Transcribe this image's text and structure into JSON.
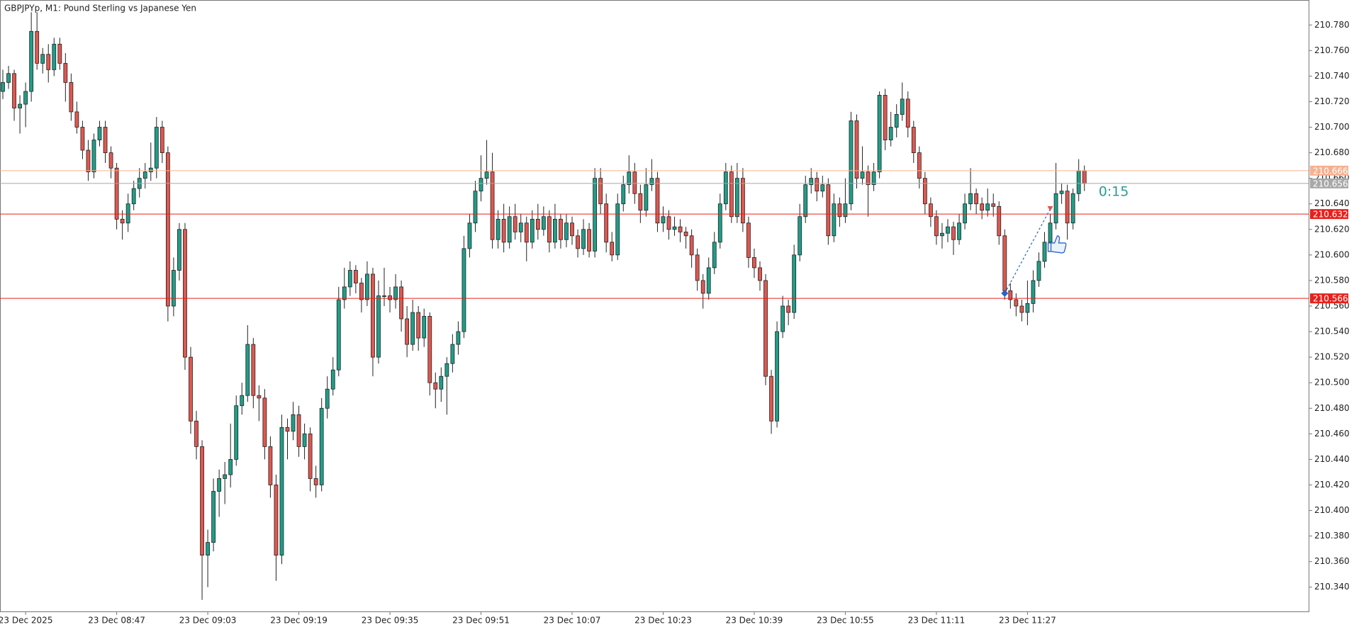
{
  "chart_data": {
    "type": "candlestick",
    "title": "GBPJPYp, M1:  Pound Sterling vs Japanese Yen",
    "timer": "0:15",
    "up_color": "#1f9e89",
    "down_color": "#e0574f",
    "ylim": [
      210.321,
      210.799
    ],
    "yticks": [
      {
        "value": 210.34,
        "label": "210.340"
      },
      {
        "value": 210.36,
        "label": "210.360"
      },
      {
        "value": 210.38,
        "label": "210.380"
      },
      {
        "value": 210.4,
        "label": "210.400"
      },
      {
        "value": 210.42,
        "label": "210.420"
      },
      {
        "value": 210.44,
        "label": "210.440"
      },
      {
        "value": 210.46,
        "label": "210.460"
      },
      {
        "value": 210.48,
        "label": "210.480"
      },
      {
        "value": 210.5,
        "label": "210.500"
      },
      {
        "value": 210.52,
        "label": "210.520"
      },
      {
        "value": 210.54,
        "label": "210.540"
      },
      {
        "value": 210.56,
        "label": "210.560"
      },
      {
        "value": 210.58,
        "label": "210.580"
      },
      {
        "value": 210.6,
        "label": "210.600"
      },
      {
        "value": 210.62,
        "label": "210.620"
      },
      {
        "value": 210.64,
        "label": "210.640"
      },
      {
        "value": 210.66,
        "label": "210.660"
      },
      {
        "value": 210.68,
        "label": "210.680"
      },
      {
        "value": 210.7,
        "label": "210.700"
      },
      {
        "value": 210.72,
        "label": "210.720"
      },
      {
        "value": 210.74,
        "label": "210.740"
      },
      {
        "value": 210.76,
        "label": "210.760"
      },
      {
        "value": 210.78,
        "label": "210.780"
      }
    ],
    "xticks": [
      {
        "value": 4,
        "label": "23 Dec 2025"
      },
      {
        "value": 20,
        "label": "23 Dec 08:47"
      },
      {
        "value": 36,
        "label": "23 Dec 09:03"
      },
      {
        "value": 52,
        "label": "23 Dec 09:19"
      },
      {
        "value": 68,
        "label": "23 Dec 09:35"
      },
      {
        "value": 84,
        "label": "23 Dec 09:51"
      },
      {
        "value": 100,
        "label": "23 Dec 10:07"
      },
      {
        "value": 116,
        "label": "23 Dec 10:23"
      },
      {
        "value": 132,
        "label": "23 Dec 10:39"
      },
      {
        "value": 148,
        "label": "23 Dec 10:55"
      },
      {
        "value": 164,
        "label": "23 Dec 11:11"
      },
      {
        "value": 180,
        "label": "23 Dec 11:27"
      }
    ],
    "levels": [
      {
        "value": 210.666,
        "color": "#f7b08f"
      },
      {
        "value": 210.656,
        "color": "#a8a8a8"
      },
      {
        "value": 210.632,
        "color": "#e8201c"
      },
      {
        "value": 210.566,
        "color": "#e8201c"
      }
    ],
    "trade": {
      "open_index": 176,
      "open_price": 210.57,
      "close_index": 184,
      "close_price": 210.636
    },
    "candles": [
      [
        210.728,
        210.745,
        210.722,
        210.735
      ],
      [
        210.735,
        210.748,
        210.73,
        210.742
      ],
      [
        210.742,
        210.745,
        210.705,
        210.715
      ],
      [
        210.715,
        210.725,
        210.695,
        210.718
      ],
      [
        210.718,
        210.735,
        210.7,
        210.728
      ],
      [
        210.728,
        210.79,
        210.72,
        210.775
      ],
      [
        210.775,
        210.79,
        210.745,
        210.75
      ],
      [
        210.75,
        210.762,
        210.742,
        210.757
      ],
      [
        210.757,
        210.765,
        210.735,
        210.745
      ],
      [
        210.745,
        210.77,
        210.74,
        210.765
      ],
      [
        210.765,
        210.77,
        210.745,
        210.75
      ],
      [
        210.75,
        210.758,
        210.72,
        210.735
      ],
      [
        210.735,
        210.742,
        210.705,
        210.712
      ],
      [
        210.712,
        210.72,
        210.695,
        210.7
      ],
      [
        210.7,
        210.705,
        210.675,
        210.682
      ],
      [
        210.682,
        210.69,
        210.658,
        210.665
      ],
      [
        210.665,
        210.695,
        210.66,
        210.69
      ],
      [
        210.69,
        210.705,
        210.685,
        210.7
      ],
      [
        210.7,
        210.705,
        210.672,
        210.68
      ],
      [
        210.68,
        210.685,
        210.66,
        210.668
      ],
      [
        210.668,
        210.672,
        210.62,
        210.628
      ],
      [
        210.628,
        210.635,
        210.612,
        210.625
      ],
      [
        210.625,
        210.648,
        210.618,
        210.64
      ],
      [
        210.64,
        210.658,
        210.635,
        210.652
      ],
      [
        210.652,
        210.668,
        210.645,
        210.66
      ],
      [
        210.66,
        210.672,
        210.652,
        210.665
      ],
      [
        210.665,
        210.688,
        210.658,
        210.668
      ],
      [
        210.668,
        210.708,
        210.66,
        210.7
      ],
      [
        210.7,
        210.705,
        210.672,
        210.68
      ],
      [
        210.68,
        210.685,
        210.548,
        210.56
      ],
      [
        210.56,
        210.598,
        210.552,
        210.588
      ],
      [
        210.588,
        210.625,
        210.58,
        210.62
      ],
      [
        210.62,
        210.625,
        210.51,
        210.52
      ],
      [
        210.52,
        210.528,
        210.46,
        210.47
      ],
      [
        210.47,
        210.478,
        210.44,
        210.45
      ],
      [
        210.45,
        210.455,
        210.33,
        210.365
      ],
      [
        210.365,
        210.385,
        210.34,
        210.375
      ],
      [
        210.375,
        210.425,
        210.368,
        210.415
      ],
      [
        210.415,
        210.432,
        210.395,
        210.425
      ],
      [
        210.425,
        210.438,
        210.405,
        210.428
      ],
      [
        210.428,
        210.468,
        210.418,
        210.44
      ],
      [
        210.44,
        210.49,
        210.435,
        210.482
      ],
      [
        210.482,
        210.5,
        210.475,
        210.49
      ],
      [
        210.49,
        210.545,
        210.485,
        210.53
      ],
      [
        210.53,
        210.535,
        210.48,
        210.49
      ],
      [
        210.49,
        210.498,
        210.47,
        210.488
      ],
      [
        210.488,
        210.495,
        210.44,
        210.45
      ],
      [
        210.45,
        210.458,
        210.41,
        210.42
      ],
      [
        210.42,
        210.428,
        210.345,
        210.365
      ],
      [
        210.365,
        210.475,
        210.358,
        210.465
      ],
      [
        210.465,
        210.472,
        210.44,
        210.462
      ],
      [
        210.462,
        210.485,
        210.455,
        210.475
      ],
      [
        210.475,
        210.482,
        210.442,
        210.45
      ],
      [
        210.45,
        210.468,
        210.44,
        210.46
      ],
      [
        210.46,
        210.465,
        210.415,
        210.425
      ],
      [
        210.425,
        210.435,
        210.41,
        210.42
      ],
      [
        210.42,
        210.488,
        210.415,
        210.48
      ],
      [
        210.48,
        210.505,
        210.472,
        210.495
      ],
      [
        210.495,
        210.52,
        210.49,
        210.51
      ],
      [
        210.51,
        210.575,
        210.505,
        210.565
      ],
      [
        210.565,
        210.59,
        210.558,
        210.575
      ],
      [
        210.575,
        210.595,
        210.568,
        210.588
      ],
      [
        210.588,
        210.592,
        210.57,
        210.578
      ],
      [
        210.578,
        210.582,
        210.555,
        210.565
      ],
      [
        210.565,
        210.595,
        210.56,
        210.585
      ],
      [
        210.585,
        210.59,
        210.505,
        210.52
      ],
      [
        210.52,
        210.58,
        210.515,
        210.568
      ],
      [
        210.568,
        210.59,
        210.56,
        210.568
      ],
      [
        210.568,
        210.575,
        210.555,
        210.565
      ],
      [
        210.565,
        210.585,
        210.558,
        210.575
      ],
      [
        210.575,
        210.58,
        210.54,
        210.55
      ],
      [
        210.55,
        210.56,
        210.52,
        210.53
      ],
      [
        210.53,
        210.565,
        210.525,
        210.555
      ],
      [
        210.555,
        210.56,
        210.525,
        210.535
      ],
      [
        210.535,
        210.558,
        210.528,
        210.552
      ],
      [
        210.552,
        210.555,
        210.49,
        210.5
      ],
      [
        210.5,
        210.508,
        210.48,
        210.495
      ],
      [
        210.495,
        210.512,
        210.485,
        210.505
      ],
      [
        210.505,
        210.52,
        210.475,
        210.515
      ],
      [
        210.515,
        210.538,
        210.508,
        210.53
      ],
      [
        210.53,
        210.548,
        210.522,
        210.54
      ],
      [
        210.54,
        210.615,
        210.535,
        210.605
      ],
      [
        210.605,
        210.632,
        210.598,
        210.625
      ],
      [
        210.625,
        210.658,
        210.618,
        210.65
      ],
      [
        210.65,
        210.678,
        210.642,
        210.66
      ],
      [
        210.66,
        210.69,
        210.655,
        210.665
      ],
      [
        210.665,
        210.68,
        210.605,
        210.612
      ],
      [
        210.612,
        210.635,
        210.605,
        210.628
      ],
      [
        210.628,
        210.64,
        210.602,
        210.61
      ],
      [
        210.61,
        210.638,
        210.605,
        210.63
      ],
      [
        210.63,
        210.64,
        210.612,
        210.618
      ],
      [
        210.618,
        210.632,
        210.61,
        210.625
      ],
      [
        210.625,
        210.63,
        210.595,
        210.61
      ],
      [
        210.61,
        210.635,
        210.605,
        210.628
      ],
      [
        210.628,
        210.64,
        210.612,
        210.62
      ],
      [
        210.62,
        210.638,
        210.615,
        210.63
      ],
      [
        210.63,
        210.635,
        210.602,
        210.61
      ],
      [
        210.61,
        210.64,
        210.605,
        210.628
      ],
      [
        210.628,
        210.632,
        210.605,
        210.612
      ],
      [
        210.612,
        210.632,
        210.606,
        210.625
      ],
      [
        210.625,
        210.63,
        210.608,
        210.615
      ],
      [
        210.615,
        210.62,
        210.598,
        210.605
      ],
      [
        210.605,
        210.628,
        210.6,
        210.62
      ],
      [
        210.62,
        210.625,
        210.598,
        210.603
      ],
      [
        210.603,
        210.668,
        210.598,
        210.66
      ],
      [
        210.66,
        210.668,
        210.632,
        210.64
      ],
      [
        210.64,
        210.648,
        210.602,
        210.61
      ],
      [
        210.61,
        210.618,
        210.595,
        210.6
      ],
      [
        210.6,
        210.648,
        210.596,
        210.64
      ],
      [
        210.64,
        210.662,
        210.634,
        210.655
      ],
      [
        210.655,
        210.678,
        210.648,
        210.665
      ],
      [
        210.665,
        210.672,
        210.64,
        210.648
      ],
      [
        210.648,
        210.655,
        210.625,
        210.635
      ],
      [
        210.635,
        210.668,
        210.63,
        210.655
      ],
      [
        210.655,
        210.675,
        210.65,
        210.66
      ],
      [
        210.66,
        210.665,
        210.618,
        210.625
      ],
      [
        210.625,
        210.638,
        210.618,
        210.63
      ],
      [
        210.63,
        210.635,
        210.612,
        210.62
      ],
      [
        210.62,
        210.63,
        210.615,
        210.622
      ],
      [
        210.622,
        210.628,
        210.61,
        210.618
      ],
      [
        210.618,
        210.622,
        210.605,
        210.615
      ],
      [
        210.615,
        210.62,
        210.59,
        210.6
      ],
      [
        210.6,
        210.605,
        210.572,
        210.58
      ],
      [
        210.58,
        210.585,
        210.558,
        210.57
      ],
      [
        210.57,
        210.598,
        210.565,
        210.59
      ],
      [
        210.59,
        210.618,
        210.585,
        210.61
      ],
      [
        210.61,
        210.648,
        210.605,
        210.64
      ],
      [
        210.64,
        210.672,
        210.635,
        210.665
      ],
      [
        210.665,
        210.67,
        210.625,
        210.63
      ],
      [
        210.63,
        210.672,
        210.625,
        210.66
      ],
      [
        210.66,
        210.668,
        210.618,
        210.625
      ],
      [
        210.625,
        210.63,
        210.59,
        210.598
      ],
      [
        210.598,
        210.605,
        210.582,
        210.59
      ],
      [
        210.59,
        210.595,
        210.572,
        210.58
      ],
      [
        210.58,
        210.585,
        210.498,
        210.505
      ],
      [
        210.505,
        210.51,
        210.46,
        210.47
      ],
      [
        210.47,
        210.548,
        210.465,
        210.54
      ],
      [
        210.54,
        210.568,
        210.535,
        210.56
      ],
      [
        210.56,
        210.565,
        210.545,
        210.555
      ],
      [
        210.555,
        210.608,
        210.55,
        210.6
      ],
      [
        210.6,
        210.64,
        210.595,
        210.63
      ],
      [
        210.63,
        210.662,
        210.625,
        210.655
      ],
      [
        210.655,
        210.668,
        210.648,
        210.66
      ],
      [
        210.66,
        210.665,
        210.642,
        210.65
      ],
      [
        210.65,
        210.662,
        210.645,
        210.655
      ],
      [
        210.655,
        210.66,
        210.608,
        210.615
      ],
      [
        210.615,
        210.648,
        210.61,
        210.64
      ],
      [
        210.64,
        210.645,
        210.622,
        210.63
      ],
      [
        210.63,
        210.66,
        210.625,
        210.64
      ],
      [
        210.64,
        210.712,
        210.635,
        210.705
      ],
      [
        210.705,
        210.71,
        210.652,
        210.66
      ],
      [
        210.66,
        210.685,
        210.655,
        210.665
      ],
      [
        210.665,
        210.67,
        210.63,
        210.655
      ],
      [
        210.655,
        210.672,
        210.65,
        210.665
      ],
      [
        210.665,
        210.728,
        210.66,
        210.725
      ],
      [
        210.725,
        210.73,
        210.682,
        210.69
      ],
      [
        210.69,
        210.712,
        210.685,
        210.7
      ],
      [
        210.7,
        210.718,
        210.692,
        210.71
      ],
      [
        210.71,
        210.735,
        210.705,
        210.722
      ],
      [
        210.722,
        210.728,
        210.692,
        210.7
      ],
      [
        210.7,
        210.705,
        210.672,
        210.68
      ],
      [
        210.68,
        210.685,
        210.652,
        210.66
      ],
      [
        210.66,
        210.665,
        210.632,
        210.64
      ],
      [
        210.64,
        210.645,
        210.622,
        210.63
      ],
      [
        210.63,
        210.635,
        210.608,
        210.615
      ],
      [
        210.615,
        210.625,
        210.605,
        210.617
      ],
      [
        210.617,
        210.628,
        210.61,
        210.622
      ],
      [
        210.622,
        210.626,
        210.6,
        210.612
      ],
      [
        210.612,
        210.632,
        210.608,
        210.625
      ],
      [
        210.625,
        210.648,
        210.62,
        210.64
      ],
      [
        210.64,
        210.668,
        210.635,
        210.648
      ],
      [
        210.648,
        210.652,
        210.632,
        210.64
      ],
      [
        210.64,
        210.645,
        210.628,
        210.635
      ],
      [
        210.635,
        210.652,
        210.63,
        210.64
      ],
      [
        210.64,
        210.648,
        210.63,
        210.638
      ],
      [
        210.638,
        210.642,
        210.608,
        210.615
      ],
      [
        210.615,
        210.62,
        210.565,
        210.572
      ],
      [
        210.572,
        210.578,
        210.558,
        210.565
      ],
      [
        210.565,
        210.57,
        210.552,
        210.56
      ],
      [
        210.56,
        210.565,
        210.548,
        210.555
      ],
      [
        210.555,
        210.58,
        210.545,
        210.562
      ],
      [
        210.562,
        210.588,
        210.555,
        210.58
      ],
      [
        210.58,
        210.602,
        210.575,
        210.595
      ],
      [
        210.595,
        210.618,
        210.59,
        210.61
      ],
      [
        210.61,
        210.632,
        210.605,
        210.625
      ],
      [
        210.625,
        210.672,
        210.62,
        210.648
      ],
      [
        210.648,
        210.656,
        210.64,
        210.65
      ],
      [
        210.65,
        210.655,
        210.612,
        210.625
      ],
      [
        210.625,
        210.652,
        210.62,
        210.648
      ],
      [
        210.648,
        210.675,
        210.642,
        210.666
      ],
      [
        210.666,
        210.67,
        210.65,
        210.656
      ]
    ]
  }
}
